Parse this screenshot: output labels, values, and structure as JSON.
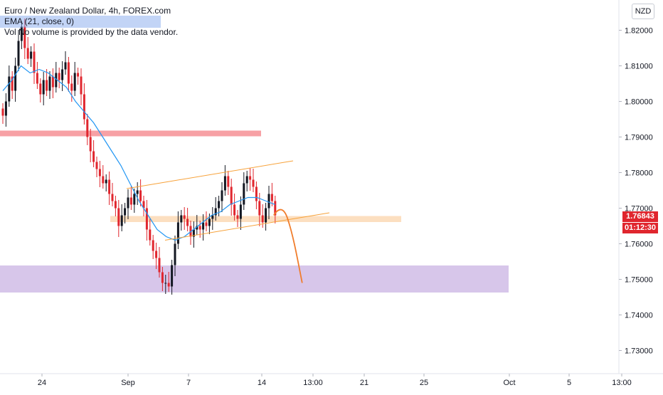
{
  "header": {
    "symbol_title": "Euro / New Zealand Dollar, 4h, FOREX.com",
    "ema_label": "EMA (21, close, 0)",
    "volume_note": "Vol No volume is provided by the data vendor."
  },
  "currency_button": "NZD",
  "last_price_label": "1.76843",
  "countdown_label": "01:12:30",
  "colors": {
    "up_candle": "#131722",
    "down_candle": "#e0262e",
    "ema_line": "#2196f3",
    "resistance_zone": "#f7a1a5",
    "support_zone_top": "#fcd9b5",
    "support_zone_bottom": "#d7c6ea",
    "channel_lines": "#f7a23a",
    "projection_line": "#f07d2c",
    "price_tag": "#e0262e"
  },
  "chart_data": {
    "type": "candlestick",
    "symbol": "EURNZD",
    "timeframe": "4h",
    "ylim": [
      1.7235,
      1.8285
    ],
    "y_ticks": [
      "1.82000",
      "1.81000",
      "1.80000",
      "1.79000",
      "1.78000",
      "1.77000",
      "1.76000",
      "1.75000",
      "1.74000",
      "1.73000"
    ],
    "x_ticks": [
      "24",
      "Sep",
      "7",
      "14",
      "13:00",
      "21",
      "25",
      "Oct",
      "5",
      "13:00"
    ],
    "ohlc_close_path": [
      1.796,
      1.8,
      1.807,
      1.803,
      1.81,
      1.817,
      1.821,
      1.815,
      1.812,
      1.814,
      1.808,
      1.805,
      1.802,
      1.806,
      1.803,
      1.807,
      1.804,
      1.808,
      1.806,
      1.809,
      1.811,
      1.805,
      1.803,
      1.808,
      1.807,
      1.802,
      1.795,
      1.79,
      1.786,
      1.783,
      1.781,
      1.779,
      1.777,
      1.778,
      1.774,
      1.772,
      1.77,
      1.765,
      1.768,
      1.77,
      1.773,
      1.771,
      1.774,
      1.775,
      1.772,
      1.77,
      1.764,
      1.761,
      1.758,
      1.756,
      1.752,
      1.749,
      1.749,
      1.748,
      1.754,
      1.76,
      1.766,
      1.768,
      1.767,
      1.765,
      1.762,
      1.764,
      1.765,
      1.764,
      1.766,
      1.765,
      1.767,
      1.768,
      1.77,
      1.772,
      1.775,
      1.779,
      1.776,
      1.771,
      1.768,
      1.767,
      1.771,
      1.777,
      1.779,
      1.778,
      1.776,
      1.772,
      1.768,
      1.766,
      1.77,
      1.774,
      1.772,
      1.768
    ],
    "ema_21": [
      1.803,
      1.806,
      1.81,
      1.808,
      1.809,
      1.808,
      1.806,
      1.804,
      1.8,
      1.797,
      1.794,
      1.79,
      1.786,
      1.782,
      1.777,
      1.772,
      1.768,
      1.764,
      1.762,
      1.761,
      1.762,
      1.764,
      1.766,
      1.768,
      1.769,
      1.771,
      1.772,
      1.773,
      1.773,
      1.772,
      1.771
    ],
    "zones": [
      {
        "from": 1.7902,
        "to": 1.7918
      },
      {
        "from": 1.7661,
        "to": 1.7678
      },
      {
        "from": 1.7463,
        "to": 1.7539
      }
    ],
    "channel": {
      "upper_from": 1.7755,
      "upper_to": 1.7833,
      "lower_from": 1.761,
      "lower_to": 1.7687
    },
    "projection_target": 1.749,
    "last_price": 1.76843
  }
}
